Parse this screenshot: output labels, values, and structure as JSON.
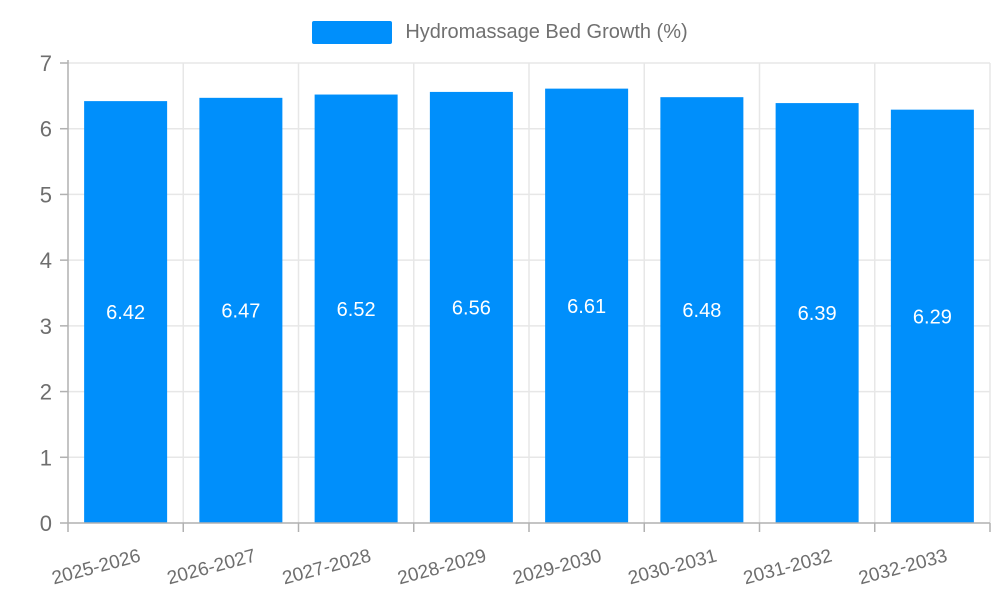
{
  "chart_data": {
    "type": "bar",
    "title": "Hydromassage Bed Growth (%)",
    "legend": {
      "position": "top",
      "label": "Hydromassage Bed Growth (%)"
    },
    "categories": [
      "2025-2026",
      "2026-2027",
      "2027-2028",
      "2028-2029",
      "2029-2030",
      "2030-2031",
      "2031-2032",
      "2032-2033"
    ],
    "values": [
      6.42,
      6.47,
      6.52,
      6.56,
      6.61,
      6.48,
      6.39,
      6.29
    ],
    "data_labels": [
      "6.42",
      "6.47",
      "6.52",
      "6.56",
      "6.61",
      "6.48",
      "6.39",
      "6.29"
    ],
    "xlabel": "",
    "ylabel": "",
    "ylim": [
      0,
      7
    ],
    "yticks": [
      0,
      1,
      2,
      3,
      4,
      5,
      6,
      7
    ],
    "grid": true,
    "x_label_rotation_deg": -15,
    "colors": {
      "bar": "#008FFB",
      "grid_line": "#e7e7e7",
      "axis_line": "#b1b1b1",
      "tick_label": "#6e6e6e",
      "data_label": "#ffffff",
      "legend_text": "#707070"
    }
  }
}
